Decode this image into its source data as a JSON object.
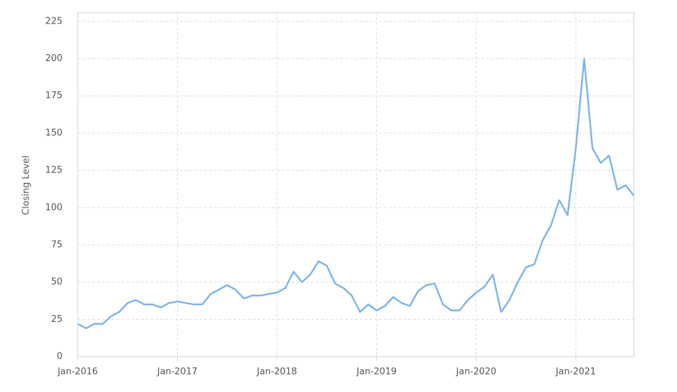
{
  "chart_data": {
    "type": "line",
    "y_label": "Closing Level",
    "x": [
      "2016-01",
      "2016-02",
      "2016-03",
      "2016-04",
      "2016-05",
      "2016-06",
      "2016-07",
      "2016-08",
      "2016-09",
      "2016-10",
      "2016-11",
      "2016-12",
      "2017-01",
      "2017-02",
      "2017-03",
      "2017-04",
      "2017-05",
      "2017-06",
      "2017-07",
      "2017-08",
      "2017-09",
      "2017-10",
      "2017-11",
      "2017-12",
      "2018-01",
      "2018-02",
      "2018-03",
      "2018-04",
      "2018-05",
      "2018-06",
      "2018-07",
      "2018-08",
      "2018-09",
      "2018-10",
      "2018-11",
      "2018-12",
      "2019-01",
      "2019-02",
      "2019-03",
      "2019-04",
      "2019-05",
      "2019-06",
      "2019-07",
      "2019-08",
      "2019-09",
      "2019-10",
      "2019-11",
      "2019-12",
      "2020-01",
      "2020-02",
      "2020-03",
      "2020-04",
      "2020-05",
      "2020-06",
      "2020-07",
      "2020-08",
      "2020-09",
      "2020-10",
      "2020-11",
      "2020-12",
      "2021-01",
      "2021-02",
      "2021-03",
      "2021-04",
      "2021-05",
      "2021-06",
      "2021-07",
      "2021-08"
    ],
    "series": [
      {
        "color": "#7eb4e8",
        "values": [
          22,
          19,
          22,
          22,
          27,
          30,
          36,
          38,
          35,
          35,
          33,
          36,
          37,
          36,
          35,
          35,
          42,
          45,
          48,
          45,
          39,
          41,
          41,
          42,
          43,
          46,
          57,
          50,
          55,
          64,
          61,
          49,
          46,
          41,
          30,
          35,
          31,
          34,
          40,
          36,
          34,
          44,
          48,
          49,
          35,
          31,
          31,
          38,
          43,
          47,
          55,
          30,
          38,
          50,
          60,
          62,
          78,
          88,
          105,
          95,
          140,
          200,
          140,
          130,
          135,
          112,
          115,
          108
        ]
      }
    ],
    "xlim": [
      "2016-01",
      "2021-08"
    ],
    "xticks": [
      {
        "value": "2016-01",
        "label": "Jan-2016"
      },
      {
        "value": "2017-01",
        "label": "Jan-2017"
      },
      {
        "value": "2018-01",
        "label": "Jan-2018"
      },
      {
        "value": "2019-01",
        "label": "Jan-2019"
      },
      {
        "value": "2020-01",
        "label": "Jan-2020"
      },
      {
        "value": "2021-01",
        "label": "Jan-2021"
      }
    ],
    "ylim": [
      0,
      231
    ],
    "yticks": [
      0,
      25,
      50,
      75,
      100,
      125,
      150,
      175,
      200,
      225
    ],
    "grid": true
  }
}
